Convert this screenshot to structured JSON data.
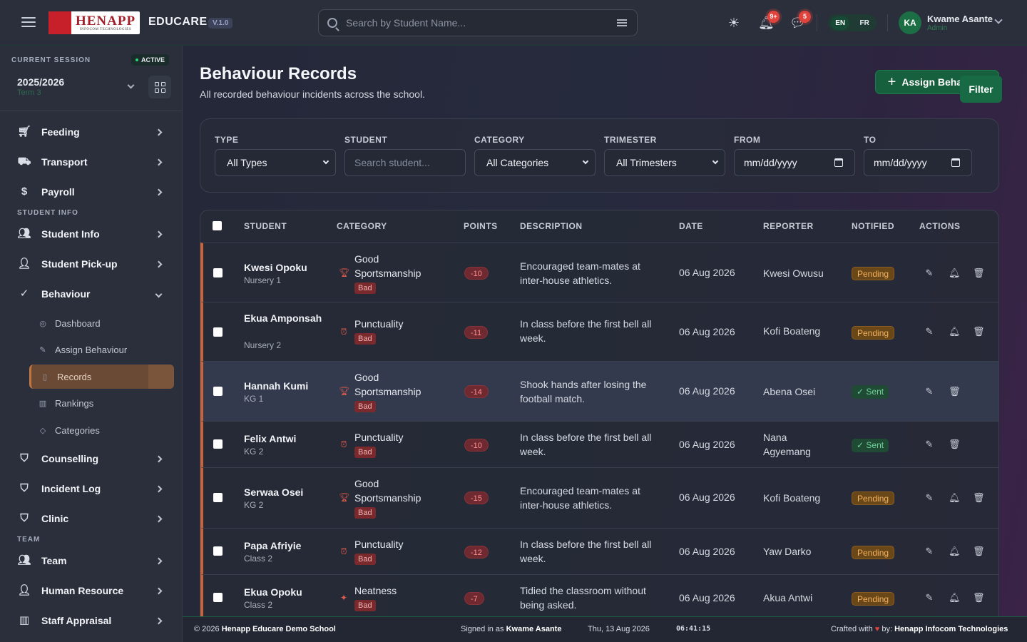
{
  "header": {
    "logo_text": "HENAPP",
    "logo_sub": "INFOCOM TECHNOLOGIES",
    "app_name": "EDUCARE",
    "version": "V.1.0",
    "search_placeholder": "Search by Student Name...",
    "notif_badge": "9+",
    "chat_badge": "5",
    "lang_en": "EN",
    "lang_fr": "FR",
    "avatar_initials": "KA",
    "user_name": "Kwame Asante",
    "user_role": "Admin"
  },
  "sidebar": {
    "session_label": "CURRENT SESSION",
    "active_label": "ACTIVE",
    "year": "2025/2026",
    "term": "Term 3",
    "items": {
      "feeding": "Feeding",
      "transport": "Transport",
      "payroll": "Payroll",
      "sec_student": "STUDENT INFO",
      "student_info": "Student Info",
      "pickup": "Student Pick-up",
      "behaviour": "Behaviour",
      "sub_dashboard": "Dashboard",
      "sub_assign": "Assign Behaviour",
      "sub_records": "Records",
      "sub_rankings": "Rankings",
      "sub_categories": "Categories",
      "counselling": "Counselling",
      "incident": "Incident Log",
      "clinic": "Clinic",
      "sec_team": "TEAM",
      "team": "Team",
      "hr": "Human Resource",
      "appraisal": "Staff Appraisal"
    }
  },
  "page": {
    "title": "Behaviour Records",
    "subtitle": "All recorded behaviour incidents across the school.",
    "assign_button": "Assign Behaviour"
  },
  "filters": {
    "type_label": "TYPE",
    "type_value": "All Types",
    "student_label": "STUDENT",
    "student_placeholder": "Search student...",
    "category_label": "CATEGORY",
    "category_value": "All Categories",
    "trimester_label": "TRIMESTER",
    "trimester_value": "All Trimesters",
    "from_label": "FROM",
    "from_value": "mm/dd/yyyy",
    "to_label": "TO",
    "to_value": "mm/dd/yyyy",
    "filter_button": "Filter"
  },
  "table": {
    "headers": {
      "student": "STUDENT",
      "category": "CATEGORY",
      "points": "POINTS",
      "description": "DESCRIPTION",
      "date": "DATE",
      "reporter": "REPORTER",
      "notified": "NOTIFIED",
      "actions": "ACTIONS"
    },
    "rows": [
      {
        "name": "Kwesi Opoku",
        "class": "Nursery 1",
        "category": "Good Sportsmanship",
        "type": "Bad",
        "points": "-10",
        "description": "Encouraged team-mates at inter-house athletics.",
        "date": "06 Aug 2026",
        "reporter": "Kwesi Owusu",
        "notified": "Pending"
      },
      {
        "name": "Ekua Amponsah",
        "class": "Nursery 2",
        "category": "Punctuality",
        "type": "Bad",
        "points": "-11",
        "description": "In class before the first bell all week.",
        "date": "06 Aug 2026",
        "reporter": "Kofi Boateng",
        "notified": "Pending"
      },
      {
        "name": "Hannah Kumi",
        "class": "KG 1",
        "category": "Good Sportsmanship",
        "type": "Bad",
        "points": "-14",
        "description": "Shook hands after losing the football match.",
        "date": "06 Aug 2026",
        "reporter": "Abena Osei",
        "notified": "✓ Sent"
      },
      {
        "name": "Felix Antwi",
        "class": "KG 2",
        "category": "Punctuality",
        "type": "Bad",
        "points": "-10",
        "description": "In class before the first bell all week.",
        "date": "06 Aug 2026",
        "reporter": "Nana Agyemang",
        "notified": "✓ Sent"
      },
      {
        "name": "Serwaa Osei",
        "class": "KG 2",
        "category": "Good Sportsmanship",
        "type": "Bad",
        "points": "-15",
        "description": "Encouraged team-mates at inter-house athletics.",
        "date": "06 Aug 2026",
        "reporter": "Kofi Boateng",
        "notified": "Pending"
      },
      {
        "name": "Papa Afriyie",
        "class": "Class 2",
        "category": "Punctuality",
        "type": "Bad",
        "points": "-12",
        "description": "In class before the first bell all week.",
        "date": "06 Aug 2026",
        "reporter": "Yaw Darko",
        "notified": "Pending"
      },
      {
        "name": "Ekua Opoku",
        "class": "Class 2",
        "category": "Neatness",
        "type": "Bad",
        "points": "-7",
        "description": "Tidied the classroom without being asked.",
        "date": "06 Aug 2026",
        "reporter": "Akua Antwi",
        "notified": "Pending"
      }
    ]
  },
  "footer": {
    "copyright": "© 2026",
    "school": "Henapp Educare Demo School",
    "signed_in_prefix": "Signed in as",
    "signed_in_user": "Kwame Asante",
    "date": "Thu, 13 Aug 2026",
    "time": "06:41:15",
    "crafted_prefix": "Crafted with",
    "crafted_by": "by:",
    "company": "Henapp Infocom Technologies"
  }
}
